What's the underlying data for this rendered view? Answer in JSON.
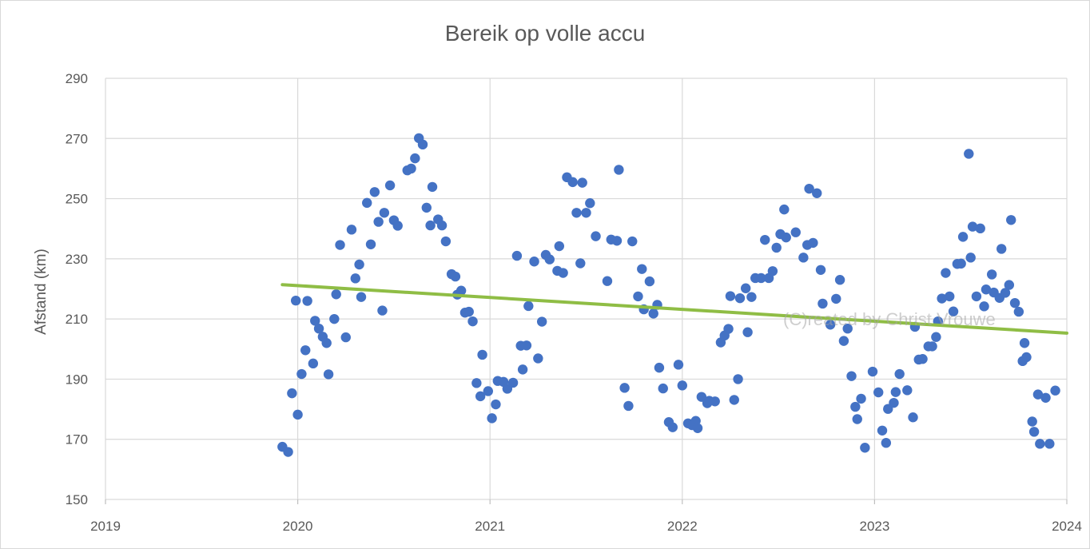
{
  "chart_data": {
    "type": "scatter",
    "title": "Bereik op volle accu",
    "ylabel": "Afstand (km)",
    "xlabel": "",
    "ylim": [
      150,
      290
    ],
    "yticks": [
      150,
      170,
      190,
      210,
      230,
      250,
      270,
      290
    ],
    "xlim": [
      2019,
      2024
    ],
    "xticks": [
      "2019",
      "2020",
      "2021",
      "2022",
      "2023",
      "2024"
    ],
    "grid": true,
    "legend": "none",
    "watermark": "(C)reated by Christ Vrouwe",
    "colors": {
      "points": "#4472c4",
      "trend": "#8fbd45",
      "grid": "#d9d9d9",
      "text": "#595959"
    },
    "trendline": {
      "type": "linear",
      "x": [
        2019.92,
        2024.0
      ],
      "y": [
        221.4,
        205.3
      ]
    },
    "points": [
      [
        2019.92,
        167.5
      ],
      [
        2019.95,
        165.8
      ],
      [
        2019.97,
        185.3
      ],
      [
        2019.99,
        216.1
      ],
      [
        2020.0,
        178.2
      ],
      [
        2020.02,
        191.7
      ],
      [
        2020.04,
        199.6
      ],
      [
        2020.05,
        216.0
      ],
      [
        2020.08,
        195.2
      ],
      [
        2020.09,
        209.4
      ],
      [
        2020.11,
        206.8
      ],
      [
        2020.13,
        204.1
      ],
      [
        2020.15,
        202.0
      ],
      [
        2020.16,
        191.6
      ],
      [
        2020.19,
        210.0
      ],
      [
        2020.2,
        218.2
      ],
      [
        2020.22,
        234.6
      ],
      [
        2020.25,
        203.9
      ],
      [
        2020.28,
        239.7
      ],
      [
        2020.3,
        223.5
      ],
      [
        2020.32,
        228.1
      ],
      [
        2020.33,
        217.3
      ],
      [
        2020.36,
        248.6
      ],
      [
        2020.38,
        234.8
      ],
      [
        2020.4,
        252.2
      ],
      [
        2020.42,
        242.3
      ],
      [
        2020.44,
        212.8
      ],
      [
        2020.45,
        245.3
      ],
      [
        2020.48,
        254.4
      ],
      [
        2020.5,
        242.8
      ],
      [
        2020.52,
        241.0
      ],
      [
        2020.57,
        259.4
      ],
      [
        2020.59,
        260.0
      ],
      [
        2020.61,
        263.4
      ],
      [
        2020.63,
        270.1
      ],
      [
        2020.65,
        268.0
      ],
      [
        2020.67,
        247.0
      ],
      [
        2020.69,
        241.1
      ],
      [
        2020.7,
        253.9
      ],
      [
        2020.73,
        243.1
      ],
      [
        2020.75,
        241.1
      ],
      [
        2020.77,
        235.8
      ],
      [
        2020.8,
        224.9
      ],
      [
        2020.82,
        224.1
      ],
      [
        2020.83,
        218.1
      ],
      [
        2020.85,
        219.4
      ],
      [
        2020.87,
        212.1
      ],
      [
        2020.89,
        212.4
      ],
      [
        2020.91,
        209.2
      ],
      [
        2020.93,
        188.7
      ],
      [
        2020.95,
        184.3
      ],
      [
        2020.96,
        198.1
      ],
      [
        2020.99,
        186.0
      ],
      [
        2021.01,
        177.0
      ],
      [
        2021.03,
        181.6
      ],
      [
        2021.04,
        189.4
      ],
      [
        2021.07,
        189.1
      ],
      [
        2021.09,
        186.8
      ],
      [
        2021.12,
        188.8
      ],
      [
        2021.14,
        231.0
      ],
      [
        2021.16,
        201.1
      ],
      [
        2021.17,
        193.2
      ],
      [
        2021.19,
        201.2
      ],
      [
        2021.2,
        214.3
      ],
      [
        2021.23,
        229.1
      ],
      [
        2021.25,
        196.9
      ],
      [
        2021.27,
        209.1
      ],
      [
        2021.29,
        231.3
      ],
      [
        2021.31,
        229.8
      ],
      [
        2021.35,
        226.0
      ],
      [
        2021.36,
        234.2
      ],
      [
        2021.38,
        225.3
      ],
      [
        2021.4,
        257.1
      ],
      [
        2021.43,
        255.5
      ],
      [
        2021.45,
        245.3
      ],
      [
        2021.47,
        228.5
      ],
      [
        2021.48,
        255.3
      ],
      [
        2021.5,
        245.3
      ],
      [
        2021.52,
        248.5
      ],
      [
        2021.55,
        237.5
      ],
      [
        2021.61,
        222.6
      ],
      [
        2021.63,
        236.4
      ],
      [
        2021.66,
        236.0
      ],
      [
        2021.67,
        259.6
      ],
      [
        2021.7,
        187.1
      ],
      [
        2021.72,
        181.1
      ],
      [
        2021.74,
        235.8
      ],
      [
        2021.77,
        217.5
      ],
      [
        2021.79,
        226.6
      ],
      [
        2021.8,
        213.2
      ],
      [
        2021.83,
        222.5
      ],
      [
        2021.85,
        211.8
      ],
      [
        2021.87,
        214.7
      ],
      [
        2021.88,
        193.8
      ],
      [
        2021.9,
        186.9
      ],
      [
        2021.93,
        175.7
      ],
      [
        2021.95,
        174.0
      ],
      [
        2021.98,
        194.8
      ],
      [
        2022.0,
        187.9
      ],
      [
        2022.03,
        175.3
      ],
      [
        2022.05,
        174.7
      ],
      [
        2022.07,
        176.1
      ],
      [
        2022.08,
        173.7
      ],
      [
        2022.1,
        184.1
      ],
      [
        2022.13,
        182.0
      ],
      [
        2022.14,
        182.8
      ],
      [
        2022.17,
        182.6
      ],
      [
        2022.2,
        202.2
      ],
      [
        2022.22,
        204.5
      ],
      [
        2022.24,
        206.7
      ],
      [
        2022.25,
        217.6
      ],
      [
        2022.27,
        183.1
      ],
      [
        2022.29,
        190.0
      ],
      [
        2022.3,
        216.9
      ],
      [
        2022.33,
        220.2
      ],
      [
        2022.34,
        205.6
      ],
      [
        2022.36,
        217.3
      ],
      [
        2022.38,
        223.6
      ],
      [
        2022.41,
        223.6
      ],
      [
        2022.43,
        236.3
      ],
      [
        2022.45,
        223.6
      ],
      [
        2022.47,
        225.9
      ],
      [
        2022.49,
        233.7
      ],
      [
        2022.51,
        238.2
      ],
      [
        2022.53,
        246.4
      ],
      [
        2022.54,
        237.1
      ],
      [
        2022.59,
        238.8
      ],
      [
        2022.63,
        230.4
      ],
      [
        2022.65,
        234.6
      ],
      [
        2022.66,
        253.3
      ],
      [
        2022.68,
        235.3
      ],
      [
        2022.7,
        251.8
      ],
      [
        2022.72,
        226.3
      ],
      [
        2022.73,
        215.1
      ],
      [
        2022.77,
        208.1
      ],
      [
        2022.8,
        216.7
      ],
      [
        2022.82,
        223.0
      ],
      [
        2022.84,
        202.7
      ],
      [
        2022.86,
        206.8
      ],
      [
        2022.88,
        191.0
      ],
      [
        2022.9,
        180.8
      ],
      [
        2022.91,
        176.7
      ],
      [
        2022.93,
        183.5
      ],
      [
        2022.95,
        167.2
      ],
      [
        2022.99,
        192.5
      ],
      [
        2023.02,
        185.6
      ],
      [
        2023.04,
        172.9
      ],
      [
        2023.06,
        168.8
      ],
      [
        2023.07,
        180.1
      ],
      [
        2023.1,
        182.1
      ],
      [
        2023.11,
        185.7
      ],
      [
        2023.13,
        191.7
      ],
      [
        2023.17,
        186.3
      ],
      [
        2023.2,
        177.3
      ],
      [
        2023.21,
        207.4
      ],
      [
        2023.23,
        196.5
      ],
      [
        2023.25,
        196.7
      ],
      [
        2023.28,
        200.9
      ],
      [
        2023.3,
        200.9
      ],
      [
        2023.32,
        204.0
      ],
      [
        2023.33,
        209.2
      ],
      [
        2023.35,
        216.8
      ],
      [
        2023.37,
        225.3
      ],
      [
        2023.39,
        217.5
      ],
      [
        2023.41,
        212.5
      ],
      [
        2023.43,
        228.3
      ],
      [
        2023.45,
        228.4
      ],
      [
        2023.46,
        237.3
      ],
      [
        2023.49,
        264.9
      ],
      [
        2023.5,
        230.4
      ],
      [
        2023.51,
        240.7
      ],
      [
        2023.53,
        217.5
      ],
      [
        2023.55,
        240.1
      ],
      [
        2023.57,
        214.2
      ],
      [
        2023.58,
        219.8
      ],
      [
        2023.61,
        224.8
      ],
      [
        2023.62,
        218.8
      ],
      [
        2023.65,
        217.0
      ],
      [
        2023.66,
        233.3
      ],
      [
        2023.68,
        218.7
      ],
      [
        2023.7,
        221.3
      ],
      [
        2023.71,
        242.9
      ],
      [
        2023.73,
        215.3
      ],
      [
        2023.75,
        212.4
      ],
      [
        2023.77,
        196.0
      ],
      [
        2023.78,
        202.0
      ],
      [
        2023.79,
        197.3
      ],
      [
        2023.82,
        175.9
      ],
      [
        2023.83,
        172.5
      ],
      [
        2023.85,
        184.9
      ],
      [
        2023.86,
        168.5
      ],
      [
        2023.89,
        183.8
      ],
      [
        2023.91,
        168.5
      ],
      [
        2023.94,
        186.2
      ]
    ]
  }
}
